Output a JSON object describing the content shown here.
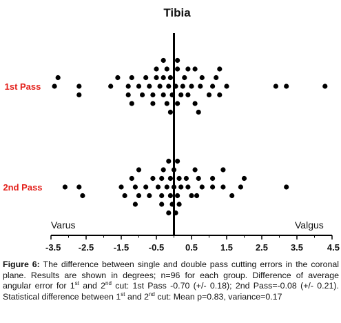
{
  "chart_data": {
    "type": "scatter",
    "title": "Tibia",
    "categories": [
      "1st Pass",
      "2nd Pass"
    ],
    "xlim": [
      -3.5,
      4.5
    ],
    "xticks": [
      "-3.5",
      "-2.5",
      "-1.5",
      "-0.5",
      "0.5",
      "1.5",
      "2.5",
      "3.5",
      "4.5"
    ],
    "zero_line_x": 0,
    "left_annotation": "Varus",
    "right_annotation": "Valgus",
    "category_color": "#e3201b",
    "point_color": "#000000",
    "series": [
      {
        "category": "1st Pass",
        "points": [
          {
            "x": -0.3,
            "lane": 0
          },
          {
            "x": 0.1,
            "lane": 0
          },
          {
            "x": -0.5,
            "lane": 1
          },
          {
            "x": -0.2,
            "lane": 1
          },
          {
            "x": 0.1,
            "lane": 1
          },
          {
            "x": 0.4,
            "lane": 1
          },
          {
            "x": 0.6,
            "lane": 1
          },
          {
            "x": 1.3,
            "lane": 1
          },
          {
            "x": -3.3,
            "lane": 2
          },
          {
            "x": -1.6,
            "lane": 2
          },
          {
            "x": -1.2,
            "lane": 2
          },
          {
            "x": -0.8,
            "lane": 2
          },
          {
            "x": -0.5,
            "lane": 2
          },
          {
            "x": -0.3,
            "lane": 2
          },
          {
            "x": -0.1,
            "lane": 2
          },
          {
            "x": 0.3,
            "lane": 2
          },
          {
            "x": 0.8,
            "lane": 2
          },
          {
            "x": 1.2,
            "lane": 2
          },
          {
            "x": -3.4,
            "lane": 3
          },
          {
            "x": -2.7,
            "lane": 3
          },
          {
            "x": -1.8,
            "lane": 3
          },
          {
            "x": -1.3,
            "lane": 3
          },
          {
            "x": -1.0,
            "lane": 3
          },
          {
            "x": -0.7,
            "lane": 3
          },
          {
            "x": -0.4,
            "lane": 3
          },
          {
            "x": -0.15,
            "lane": 3
          },
          {
            "x": 0.05,
            "lane": 3
          },
          {
            "x": 0.25,
            "lane": 3
          },
          {
            "x": 0.5,
            "lane": 3
          },
          {
            "x": 0.75,
            "lane": 3
          },
          {
            "x": 1.1,
            "lane": 3
          },
          {
            "x": 1.5,
            "lane": 3
          },
          {
            "x": 2.9,
            "lane": 3
          },
          {
            "x": 3.2,
            "lane": 3
          },
          {
            "x": 4.3,
            "lane": 3
          },
          {
            "x": -2.7,
            "lane": 4
          },
          {
            "x": -1.3,
            "lane": 4
          },
          {
            "x": -0.9,
            "lane": 4
          },
          {
            "x": -0.6,
            "lane": 4
          },
          {
            "x": -0.3,
            "lane": 4
          },
          {
            "x": -0.05,
            "lane": 4
          },
          {
            "x": 0.2,
            "lane": 4
          },
          {
            "x": 0.4,
            "lane": 4
          },
          {
            "x": 1.0,
            "lane": 4
          },
          {
            "x": 1.3,
            "lane": 4
          },
          {
            "x": -1.2,
            "lane": 5
          },
          {
            "x": -0.6,
            "lane": 5
          },
          {
            "x": -0.2,
            "lane": 5
          },
          {
            "x": 0.1,
            "lane": 5
          },
          {
            "x": 0.6,
            "lane": 5
          },
          {
            "x": -0.1,
            "lane": 6
          },
          {
            "x": 0.7,
            "lane": 6
          }
        ]
      },
      {
        "category": "2nd Pass",
        "points": [
          {
            "x": -0.15,
            "lane": 0
          },
          {
            "x": 0.1,
            "lane": 0
          },
          {
            "x": -1.0,
            "lane": 1
          },
          {
            "x": -0.3,
            "lane": 1
          },
          {
            "x": 0.0,
            "lane": 1
          },
          {
            "x": 0.6,
            "lane": 1
          },
          {
            "x": 1.4,
            "lane": 1
          },
          {
            "x": -1.2,
            "lane": 2
          },
          {
            "x": -0.6,
            "lane": 2
          },
          {
            "x": -0.35,
            "lane": 2
          },
          {
            "x": -0.1,
            "lane": 2
          },
          {
            "x": 0.15,
            "lane": 2
          },
          {
            "x": 0.35,
            "lane": 2
          },
          {
            "x": 0.7,
            "lane": 2
          },
          {
            "x": 1.1,
            "lane": 2
          },
          {
            "x": 2.0,
            "lane": 2
          },
          {
            "x": -3.1,
            "lane": 3
          },
          {
            "x": -2.7,
            "lane": 3
          },
          {
            "x": -1.5,
            "lane": 3
          },
          {
            "x": -1.1,
            "lane": 3
          },
          {
            "x": -0.8,
            "lane": 3
          },
          {
            "x": -0.45,
            "lane": 3
          },
          {
            "x": -0.2,
            "lane": 3
          },
          {
            "x": 0.0,
            "lane": 3
          },
          {
            "x": 0.2,
            "lane": 3
          },
          {
            "x": 0.4,
            "lane": 3
          },
          {
            "x": 0.8,
            "lane": 3
          },
          {
            "x": 1.1,
            "lane": 3
          },
          {
            "x": 1.4,
            "lane": 3
          },
          {
            "x": 1.9,
            "lane": 3
          },
          {
            "x": 3.2,
            "lane": 3
          },
          {
            "x": -2.6,
            "lane": 4
          },
          {
            "x": -1.4,
            "lane": 4
          },
          {
            "x": -1.0,
            "lane": 4
          },
          {
            "x": -0.7,
            "lane": 4
          },
          {
            "x": -0.35,
            "lane": 4
          },
          {
            "x": -0.1,
            "lane": 4
          },
          {
            "x": 0.1,
            "lane": 4
          },
          {
            "x": 0.5,
            "lane": 4
          },
          {
            "x": 0.65,
            "lane": 4
          },
          {
            "x": 1.65,
            "lane": 4
          },
          {
            "x": -1.1,
            "lane": 5
          },
          {
            "x": -0.35,
            "lane": 5
          },
          {
            "x": -0.05,
            "lane": 5
          },
          {
            "x": 0.15,
            "lane": 5
          },
          {
            "x": -0.15,
            "lane": 6
          },
          {
            "x": 0.05,
            "lane": 6
          }
        ]
      }
    ]
  },
  "caption": {
    "label": "Figure 6:",
    "p1": " The difference between single and double pass cutting errors in the coronal plane. Results are shown in degrees; n=96 for each group. Difference of average angular error for 1",
    "sup1": "st",
    "p2": " and 2",
    "sup2": "nd",
    "p3": " cut: 1st Pass -0.70 (+/- 0.18); 2nd Pass=-0.08 (+/- 0.21).  Statistical difference between 1",
    "sup3": "st",
    "p4": " and 2",
    "sup4": "nd",
    "p5": " cut: Mean p=0.83, variance=0.17"
  }
}
